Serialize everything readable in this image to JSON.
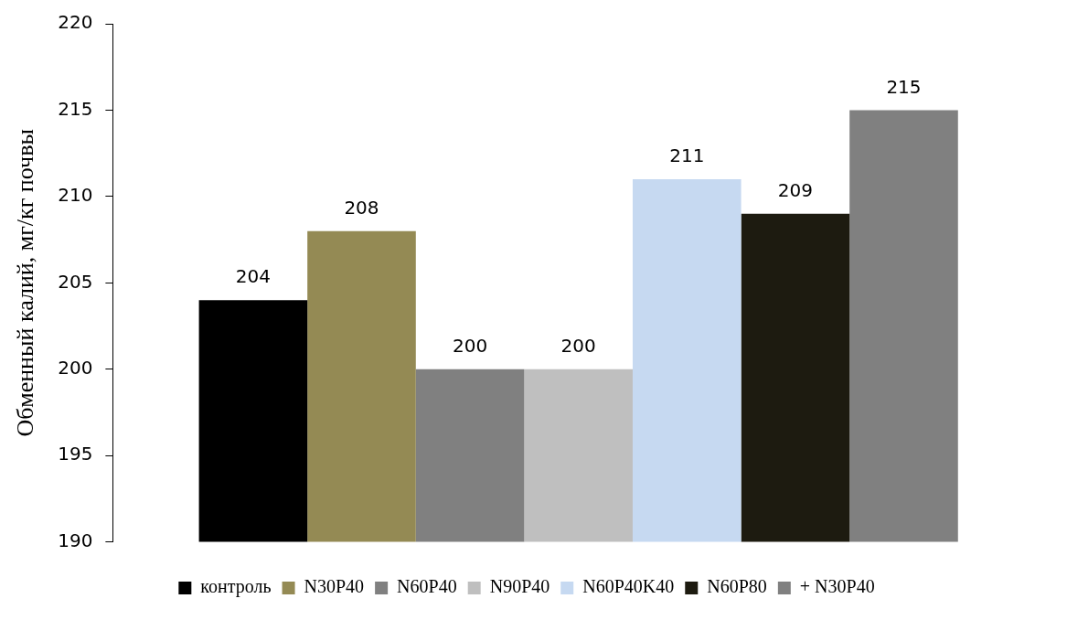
{
  "chart_data": {
    "type": "bar",
    "ylabel": "Обменный калий, мг/кг почвы",
    "categories": [
      null
    ],
    "series": [
      {
        "name": "контроль",
        "color": "#000000",
        "values": [
          204
        ]
      },
      {
        "name": "N30P40",
        "color": "#948a54",
        "values": [
          208
        ]
      },
      {
        "name": "N60P40",
        "color": "#808080",
        "values": [
          200
        ]
      },
      {
        "name": "N90P40",
        "color": "#bfbfbf",
        "values": [
          200
        ]
      },
      {
        "name": "N60P40K40",
        "color": "#c6d9f1",
        "values": [
          211
        ]
      },
      {
        "name": "N60P80",
        "color": "#1d1b10",
        "values": [
          209
        ]
      },
      {
        "name": "+ N30P40",
        "color": "#808080",
        "values": [
          215
        ]
      }
    ],
    "ylim": [
      190,
      220
    ],
    "yticks": [
      190,
      195,
      200,
      205,
      210,
      215,
      220
    ],
    "grid": false,
    "legend": "bottom",
    "data_labels": true
  }
}
